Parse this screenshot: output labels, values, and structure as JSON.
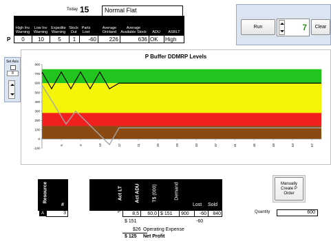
{
  "header": {
    "today_label": "Today",
    "today_value": "15",
    "mode_value": "Normal Flat"
  },
  "kpi": {
    "row_label": "P",
    "columns": [
      {
        "label": "High Inv Warning",
        "value": "0"
      },
      {
        "label": "Low Inv Warning",
        "value": "10"
      },
      {
        "label": "Expedite Warning",
        "value": "5"
      },
      {
        "label": "Stock Out",
        "value": "1"
      },
      {
        "label": "Parts Lost",
        "value": "-60"
      },
      {
        "label": "Average OnHand",
        "value": "226"
      },
      {
        "label": "Average Available Stock",
        "value": "636"
      },
      {
        "label": "ADU",
        "value": "OK"
      },
      {
        "label": "ASRLT",
        "value": "High"
      }
    ]
  },
  "controls": {
    "run_label": "Run",
    "stepper_value": "7",
    "clear_label": "Clear",
    "set_axis_label": "Set Axis",
    "axis_value": "8"
  },
  "chart_data": {
    "type": "line",
    "title": "P Buffer DDMRP Levels",
    "ylim": [
      -100,
      800
    ],
    "y_ticks": [
      "800",
      "700",
      "600",
      "500",
      "400",
      "300",
      "200",
      "100",
      "0",
      "-100"
    ],
    "x_ticks": [
      "5",
      "9",
      "13",
      "17",
      "21",
      "25",
      "29",
      "33",
      "37",
      "41",
      "45",
      "49",
      "53",
      "57"
    ],
    "xlim": [
      1,
      59
    ],
    "zones": [
      {
        "name": "green",
        "from": 600,
        "to": 750,
        "color": "#22c51e"
      },
      {
        "name": "yellow",
        "from": 280,
        "to": 600,
        "color": "#f5f50a"
      },
      {
        "name": "red",
        "from": 140,
        "to": 280,
        "color": "#f21f1f"
      },
      {
        "name": "brown",
        "from": 0,
        "to": 140,
        "color": "#8a4a12"
      }
    ],
    "series": [
      {
        "color": "#000000",
        "x": [
          1,
          3,
          5,
          7,
          9,
          11,
          13,
          15,
          17,
          59
        ],
        "y": [
          720,
          540,
          720,
          540,
          720,
          540,
          720,
          540,
          600,
          600
        ]
      },
      {
        "color": "#a6a6a6",
        "x": [
          1,
          6,
          8,
          15,
          17,
          59
        ],
        "y": [
          580,
          160,
          300,
          -60,
          120,
          120
        ]
      }
    ]
  },
  "resource": {
    "header_label": "Resource",
    "hash_label": "#",
    "row_label": "A",
    "value": "3"
  },
  "metrics": {
    "row_label": "P",
    "headers": [
      "Act LT",
      "Act ADU",
      "T$ (000)",
      "Demand",
      "Lost",
      "Sold"
    ],
    "row": [
      "8,5",
      "60,0",
      "$ 151",
      "900",
      "-60",
      "840"
    ],
    "extra_revenue": "$ 151",
    "extra_lost": "-60",
    "op_value": "$26",
    "op_label": "Operating Expense",
    "np_value": "$ 125",
    "np_label": "Net Profit"
  },
  "order": {
    "button_label": "Manually Create P Order",
    "quantity_label": "Quantity",
    "quantity_value": "600"
  }
}
